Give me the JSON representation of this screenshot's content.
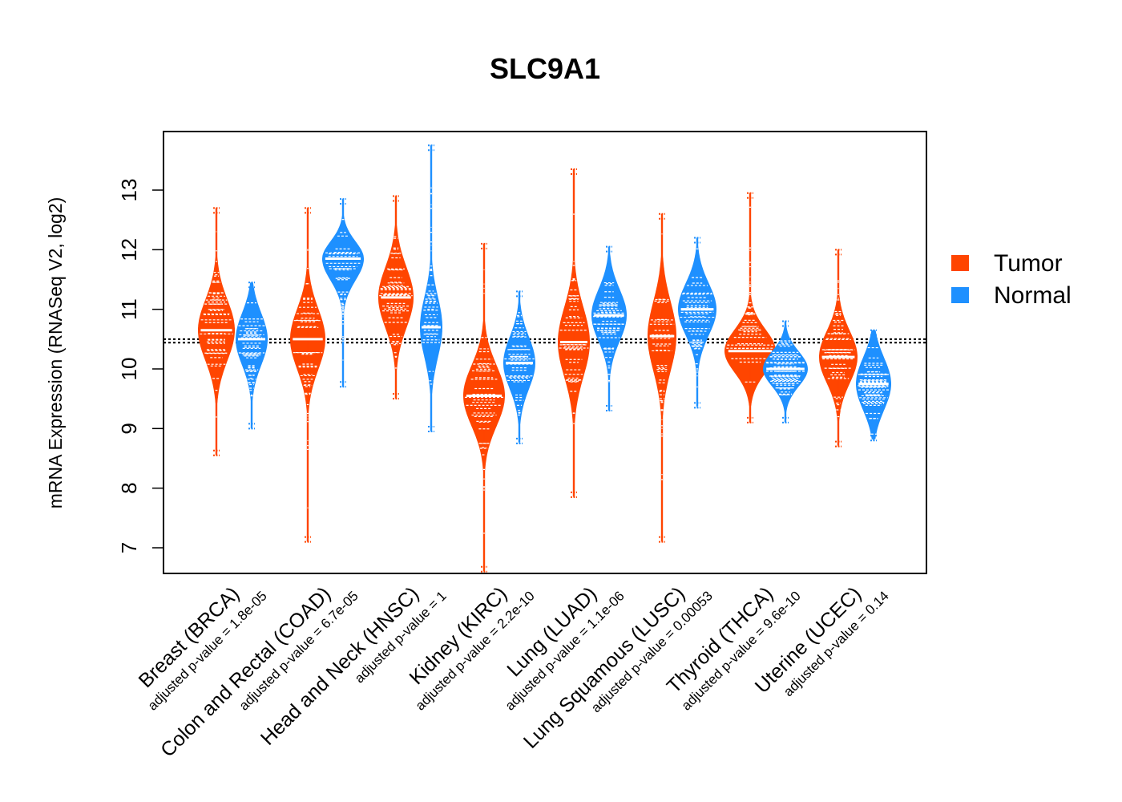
{
  "chart_data": {
    "type": "violin",
    "title": "SLC9A1",
    "ylabel": "mRNA Expression (RNASeq V2, log2)",
    "ylim": [
      6.6,
      14.0
    ],
    "yticks": [
      7,
      8,
      9,
      10,
      11,
      12,
      13
    ],
    "reference_lines": [
      10.44,
      10.5
    ],
    "legend": {
      "position": "right",
      "entries": [
        "Tumor",
        "Normal"
      ]
    },
    "colors": {
      "Tumor": "#FF4500",
      "Normal": "#1E90FF"
    },
    "groups": [
      {
        "category": "Breast (BRCA)",
        "pvalue": "adjusted p-value = 1.8e-05",
        "tumor": {
          "median": 10.65,
          "min": 8.55,
          "max": 12.7,
          "q1": 10.3,
          "q3": 11.0,
          "maxwidth": 23
        },
        "normal": {
          "median": 10.5,
          "min": 9.0,
          "max": 11.45,
          "q1": 10.2,
          "q3": 10.8,
          "maxwidth": 20
        }
      },
      {
        "category": "Colon and Rectal (COAD)",
        "pvalue": "adjusted p-value = 6.7e-05",
        "tumor": {
          "median": 10.5,
          "min": 7.1,
          "max": 12.7,
          "q1": 10.15,
          "q3": 10.85,
          "maxwidth": 22
        },
        "normal": {
          "median": 11.85,
          "min": 9.7,
          "max": 12.85,
          "q1": 11.6,
          "q3": 12.05,
          "maxwidth": 26
        }
      },
      {
        "category": "Head and Neck (HNSC)",
        "pvalue": "adjusted p-value = 1",
        "tumor": {
          "median": 11.2,
          "min": 9.5,
          "max": 12.9,
          "q1": 10.85,
          "q3": 11.55,
          "maxwidth": 22
        },
        "normal": {
          "median": 10.7,
          "min": 8.95,
          "max": 13.75,
          "q1": 10.35,
          "q3": 11.05,
          "maxwidth": 14
        }
      },
      {
        "category": "Kidney (KIRC)",
        "pvalue": "adjusted p-value = 2.2e-10",
        "tumor": {
          "median": 9.55,
          "min": 6.6,
          "max": 12.1,
          "q1": 9.2,
          "q3": 9.9,
          "maxwidth": 26
        },
        "normal": {
          "median": 10.1,
          "min": 8.75,
          "max": 11.3,
          "q1": 9.8,
          "q3": 10.4,
          "maxwidth": 20
        }
      },
      {
        "category": "Lung (LUAD)",
        "pvalue": "adjusted p-value = 1.1e-06",
        "tumor": {
          "median": 10.45,
          "min": 7.85,
          "max": 13.35,
          "q1": 10.05,
          "q3": 10.85,
          "maxwidth": 20
        },
        "normal": {
          "median": 10.9,
          "min": 9.3,
          "max": 12.05,
          "q1": 10.6,
          "q3": 11.2,
          "maxwidth": 22
        }
      },
      {
        "category": "Lung Squamous (LUSC)",
        "pvalue": "adjusted p-value = 0.00053",
        "tumor": {
          "median": 10.55,
          "min": 7.1,
          "max": 12.6,
          "q1": 10.15,
          "q3": 10.95,
          "maxwidth": 18
        },
        "normal": {
          "median": 11.0,
          "min": 9.35,
          "max": 12.2,
          "q1": 10.7,
          "q3": 11.3,
          "maxwidth": 24
        }
      },
      {
        "category": "Thyroid (THCA)",
        "pvalue": "adjusted p-value = 9.6e-10",
        "tumor": {
          "median": 10.3,
          "min": 9.1,
          "max": 12.95,
          "q1": 10.05,
          "q3": 10.55,
          "maxwidth": 32
        },
        "normal": {
          "median": 10.0,
          "min": 9.1,
          "max": 10.8,
          "q1": 9.8,
          "q3": 10.2,
          "maxwidth": 28
        }
      },
      {
        "category": "Uterine (UCEC)",
        "pvalue": "adjusted p-value = 0.14",
        "tumor": {
          "median": 10.2,
          "min": 8.7,
          "max": 12.0,
          "q1": 9.9,
          "q3": 10.5,
          "maxwidth": 24
        },
        "normal": {
          "median": 9.75,
          "min": 8.8,
          "max": 10.65,
          "q1": 9.45,
          "q3": 10.05,
          "maxwidth": 22
        }
      }
    ]
  }
}
